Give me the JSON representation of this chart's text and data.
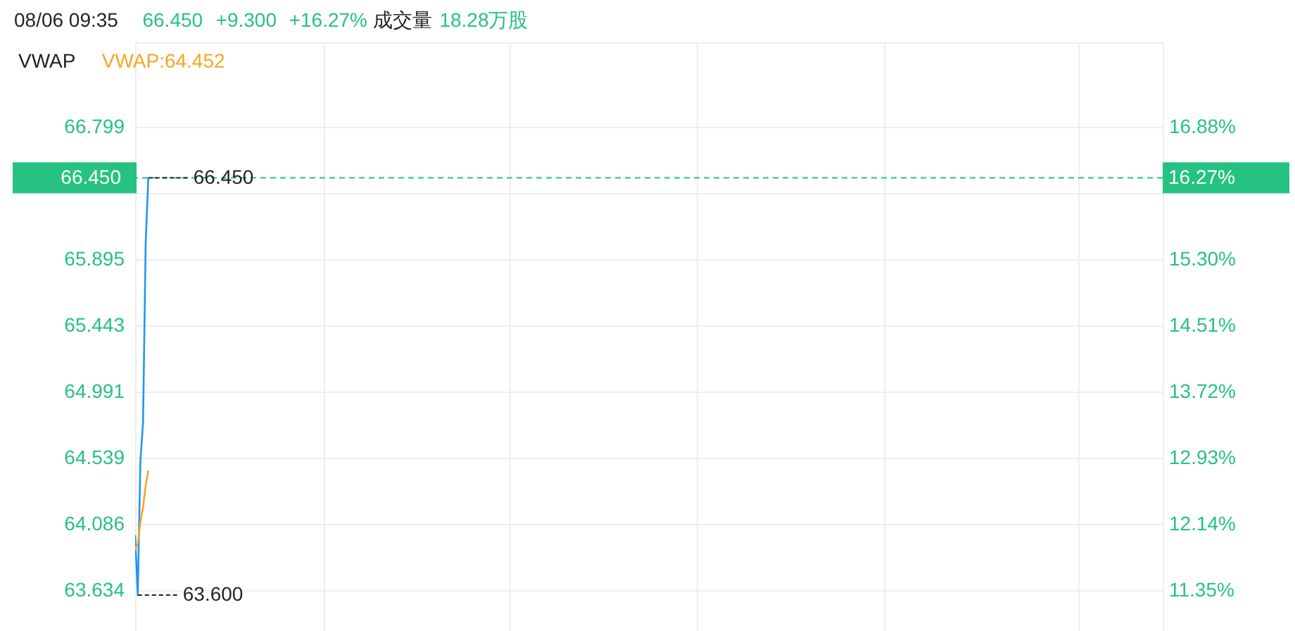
{
  "chart_data": {
    "type": "line",
    "title": "08/06 09:35",
    "annotations": [
      "66.450",
      "+9.300",
      "+16.27%",
      "成交量",
      "18.28万股",
      "VWAP",
      "16.27%",
      "63.600",
      {
        "text": "66.450",
        "y": 66.45
      }
    ],
    "categories": [
      null,
      null,
      null,
      null,
      null,
      null,
      null,
      null,
      null,
      null,
      null,
      null,
      null,
      null,
      null,
      null,
      null,
      null,
      null,
      null,
      null,
      null,
      null,
      null,
      null,
      null,
      null,
      null,
      null,
      null,
      null,
      null,
      null,
      null,
      null,
      null,
      null,
      null,
      null,
      null,
      null,
      null,
      null,
      null,
      null,
      null,
      null,
      null,
      null,
      null,
      null,
      null,
      null,
      null,
      null,
      null,
      null,
      null,
      null,
      null,
      null,
      null,
      null,
      null,
      null,
      null,
      null,
      null,
      null,
      null,
      null,
      null,
      null,
      null,
      null,
      null,
      null,
      null,
      null,
      null,
      null,
      null,
      null,
      null,
      null,
      null,
      null,
      null,
      null,
      null,
      null,
      null,
      null,
      null,
      null,
      null,
      null,
      null,
      null,
      null,
      null,
      null,
      null,
      null,
      null,
      null,
      null,
      null,
      null,
      null,
      null,
      null,
      null,
      null,
      null,
      null,
      null,
      null,
      null,
      null,
      null,
      null,
      null,
      null,
      null,
      null,
      null,
      null,
      null,
      null,
      null,
      null,
      null,
      null,
      null,
      null,
      null,
      null,
      null,
      null,
      null,
      null,
      null,
      null,
      null,
      null,
      null,
      null,
      null,
      null,
      null,
      null,
      null,
      null,
      null,
      null,
      null,
      null,
      null,
      null,
      null,
      null,
      null,
      null,
      null,
      null,
      null,
      null,
      null,
      null,
      null,
      null,
      null,
      null,
      null,
      null,
      null,
      null,
      null,
      null,
      null,
      null,
      null,
      null,
      null,
      null,
      null,
      null,
      null,
      null,
      null,
      null,
      null,
      null,
      null,
      null,
      null,
      null,
      null,
      null,
      null,
      null,
      null,
      null,
      null,
      null,
      null,
      null,
      null,
      null,
      null,
      null,
      null,
      null,
      null,
      null,
      null,
      null,
      null,
      null,
      null,
      null,
      null,
      null,
      null,
      null,
      null,
      null,
      null,
      null,
      null,
      null,
      null,
      null,
      null,
      null,
      null,
      null,
      null,
      null,
      null,
      null,
      null,
      null,
      null,
      null,
      null,
      null,
      null,
      null,
      null,
      null,
      null,
      null,
      null,
      null,
      null,
      null,
      null,
      null,
      null,
      null,
      null,
      null,
      null,
      null,
      null,
      null,
      null,
      null,
      null,
      null,
      null,
      null,
      null,
      null,
      null,
      null,
      null,
      null,
      null,
      null,
      null,
      null,
      null,
      null,
      null,
      null,
      null,
      null,
      null,
      null,
      null,
      null,
      null,
      null,
      null,
      null,
      null,
      null,
      null,
      null,
      null,
      null,
      null,
      null,
      null,
      null,
      null,
      null,
      null,
      null,
      null,
      null,
      null,
      null,
      null,
      null,
      null,
      null,
      null,
      null,
      null,
      null,
      null,
      null,
      null,
      null,
      null,
      null,
      null,
      null,
      null,
      null,
      null,
      null,
      null,
      null,
      null,
      null,
      null,
      null,
      null,
      null,
      null,
      null,
      null,
      null,
      null,
      null,
      null,
      null,
      null,
      null,
      null,
      null,
      null,
      null,
      null,
      null,
      null,
      null,
      null,
      null,
      null,
      null,
      null,
      null,
      null,
      null,
      null,
      null,
      null,
      null,
      null,
      null,
      null,
      null,
      null,
      null,
      null,
      null,
      null,
      null,
      null,
      null,
      null,
      null,
      null,
      null
    ],
    "series": [
      {
        "color": "#2196f3",
        "values": [
          64.01,
          63.6,
          64.52,
          64.78,
          66.01,
          66.45,
          null,
          null,
          null,
          null,
          null,
          null,
          null,
          null,
          null,
          null,
          null,
          null,
          null,
          null,
          null,
          null,
          null,
          null,
          null,
          null,
          null,
          null,
          null,
          null,
          null,
          null,
          null,
          null,
          null,
          null,
          null,
          null,
          null,
          null,
          null,
          null,
          null,
          null,
          null,
          null,
          null,
          null,
          null,
          null,
          null,
          null,
          null,
          null,
          null,
          null,
          null,
          null,
          null,
          null,
          null,
          null,
          null,
          null,
          null,
          null,
          null,
          null,
          null,
          null,
          null,
          null,
          null,
          null,
          null,
          null,
          null,
          null,
          null,
          null,
          null,
          null,
          null,
          null,
          null,
          null,
          null,
          null,
          null,
          null,
          null,
          null,
          null,
          null,
          null,
          null,
          null,
          null,
          null,
          null,
          null,
          null,
          null,
          null,
          null,
          null,
          null,
          null,
          null,
          null,
          null,
          null,
          null,
          null,
          null,
          null,
          null,
          null,
          null,
          null,
          null,
          null,
          null,
          null,
          null,
          null,
          null,
          null,
          null,
          null,
          null,
          null,
          null,
          null,
          null,
          null,
          null,
          null,
          null,
          null,
          null,
          null,
          null,
          null,
          null,
          null,
          null,
          null,
          null,
          null,
          null,
          null,
          null,
          null,
          null,
          null,
          null,
          null,
          null,
          null,
          null,
          null,
          null,
          null,
          null,
          null,
          null,
          null,
          null,
          null,
          null,
          null,
          null,
          null,
          null,
          null,
          null,
          null,
          null,
          null,
          null,
          null,
          null,
          null,
          null,
          null,
          null,
          null,
          null,
          null,
          null,
          null,
          null,
          null,
          null,
          null,
          null,
          null,
          null,
          null,
          null,
          null,
          null,
          null,
          null,
          null,
          null,
          null,
          null,
          null,
          null,
          null,
          null,
          null,
          null,
          null,
          null,
          null,
          null,
          null,
          null,
          null,
          null,
          null,
          null,
          null,
          null,
          null,
          null,
          null,
          null,
          null,
          null,
          null,
          null,
          null,
          null,
          null,
          null,
          null,
          null,
          null,
          null,
          null,
          null,
          null,
          null,
          null,
          null,
          null,
          null,
          null,
          null,
          null,
          null,
          null,
          null,
          null,
          null,
          null,
          null,
          null,
          null,
          null,
          null,
          null,
          null,
          null,
          null,
          null,
          null,
          null,
          null,
          null,
          null,
          null,
          null,
          null,
          null,
          null,
          null,
          null,
          null,
          null,
          null,
          null,
          null,
          null,
          null,
          null,
          null,
          null,
          null,
          null,
          null,
          null,
          null,
          null,
          null,
          null,
          null,
          null,
          null,
          null,
          null,
          null,
          null,
          null,
          null,
          null,
          null,
          null,
          null,
          null,
          null,
          null,
          null,
          null,
          null,
          null,
          null,
          null,
          null,
          null,
          null,
          null,
          null,
          null,
          null,
          null,
          null,
          null,
          null,
          null,
          null,
          null,
          null,
          null,
          null,
          null,
          null,
          null,
          null,
          null,
          null,
          null,
          null,
          null,
          null,
          null,
          null,
          null,
          null,
          null,
          null,
          null,
          null,
          null,
          null,
          null,
          null,
          null,
          null,
          null,
          null,
          null,
          null,
          null,
          null,
          null,
          null,
          null,
          null,
          null,
          null,
          null,
          null,
          null,
          null,
          null,
          null,
          null,
          null,
          null,
          null,
          null,
          null,
          null,
          null,
          null
        ]
      },
      {
        "name": "VWAP:64.452",
        "color": "#f5a623",
        "values": [
          63.91,
          63.95,
          64.1,
          64.2,
          64.35,
          64.45,
          null,
          null,
          null,
          null,
          null,
          null,
          null,
          null,
          null,
          null,
          null,
          null,
          null,
          null,
          null,
          null,
          null,
          null,
          null,
          null,
          null,
          null,
          null,
          null,
          null,
          null,
          null,
          null,
          null,
          null,
          null,
          null,
          null,
          null,
          null,
          null,
          null,
          null,
          null,
          null,
          null,
          null,
          null,
          null,
          null,
          null,
          null,
          null,
          null,
          null,
          null,
          null,
          null,
          null,
          null,
          null,
          null,
          null,
          null,
          null,
          null,
          null,
          null,
          null,
          null,
          null,
          null,
          null,
          null,
          null,
          null,
          null,
          null,
          null,
          null,
          null,
          null,
          null,
          null,
          null,
          null,
          null,
          null,
          null,
          null,
          null,
          null,
          null,
          null,
          null,
          null,
          null,
          null,
          null,
          null,
          null,
          null,
          null,
          null,
          null,
          null,
          null,
          null,
          null,
          null,
          null,
          null,
          null,
          null,
          null,
          null,
          null,
          null,
          null,
          null,
          null,
          null,
          null,
          null,
          null,
          null,
          null,
          null,
          null,
          null,
          null,
          null,
          null,
          null,
          null,
          null,
          null,
          null,
          null,
          null,
          null,
          null,
          null,
          null,
          null,
          null,
          null,
          null,
          null,
          null,
          null,
          null,
          null,
          null,
          null,
          null,
          null,
          null,
          null,
          null,
          null,
          null,
          null,
          null,
          null,
          null,
          null,
          null,
          null,
          null,
          null,
          null,
          null,
          null,
          null,
          null,
          null,
          null,
          null,
          null,
          null,
          null,
          null,
          null,
          null,
          null,
          null,
          null,
          null,
          null,
          null,
          null,
          null,
          null,
          null,
          null,
          null,
          null,
          null,
          null,
          null,
          null,
          null,
          null,
          null,
          null,
          null,
          null,
          null,
          null,
          null,
          null,
          null,
          null,
          null,
          null,
          null,
          null,
          null,
          null,
          null,
          null,
          null,
          null,
          null,
          null,
          null,
          null,
          null,
          null,
          null,
          null,
          null,
          null,
          null,
          null,
          null,
          null,
          null,
          null,
          null,
          null,
          null,
          null,
          null,
          null,
          null,
          null,
          null,
          null,
          null,
          null,
          null,
          null,
          null,
          null,
          null,
          null,
          null,
          null,
          null,
          null,
          null,
          null,
          null,
          null,
          null,
          null,
          null,
          null,
          null,
          null,
          null,
          null,
          null,
          null,
          null,
          null,
          null,
          null,
          null,
          null,
          null,
          null,
          null,
          null,
          null,
          null,
          null,
          null,
          null,
          null,
          null,
          null,
          null,
          null,
          null,
          null,
          null,
          null,
          null,
          null,
          null,
          null,
          null,
          null,
          null,
          null,
          null,
          null,
          null,
          null,
          null,
          null,
          null,
          null,
          null,
          null,
          null,
          null,
          null,
          null,
          null,
          null,
          null,
          null,
          null,
          null,
          null,
          null,
          null,
          null,
          null,
          null,
          null,
          null,
          null,
          null,
          null,
          null,
          null,
          null,
          null,
          null,
          null,
          null,
          null,
          null,
          null,
          null,
          null,
          null,
          null,
          null,
          null,
          null,
          null,
          null,
          null,
          null,
          null,
          null,
          null,
          null,
          null,
          null,
          null,
          null,
          null,
          null,
          null,
          null,
          null,
          null,
          null,
          null,
          null,
          null,
          null,
          null,
          null,
          null,
          null,
          null,
          null,
          null,
          null,
          null,
          null
        ]
      }
    ],
    "ylim": [
      63.355,
      67.376
    ],
    "yticks": [
      63.634,
      64.086,
      64.539,
      64.991,
      65.443,
      65.895,
      {
        "value": 66.347,
        "label": null
      },
      66.799
    ],
    "y2lim": [
      10.86,
      17.89
    ],
    "y2ticks": [
      {
        "value": 11.35,
        "label": "11.35%"
      },
      {
        "value": 12.14,
        "label": "12.14%"
      },
      {
        "value": 12.93,
        "label": "12.93%"
      },
      {
        "value": 13.72,
        "label": "13.72%"
      },
      {
        "value": 14.51,
        "label": "14.51%"
      },
      {
        "value": 15.3,
        "label": "15.30%"
      },
      {
        "value": 16.09,
        "label": null
      },
      {
        "value": 16.88,
        "label": "16.88%"
      }
    ],
    "ref_lines": [
      {
        "axis": "y",
        "value": 66.45,
        "label": "66.450",
        "color": "#26c281",
        "line_style": "dashed"
      }
    ],
    "grid": true,
    "line_style": "solid",
    "marker": "none"
  }
}
